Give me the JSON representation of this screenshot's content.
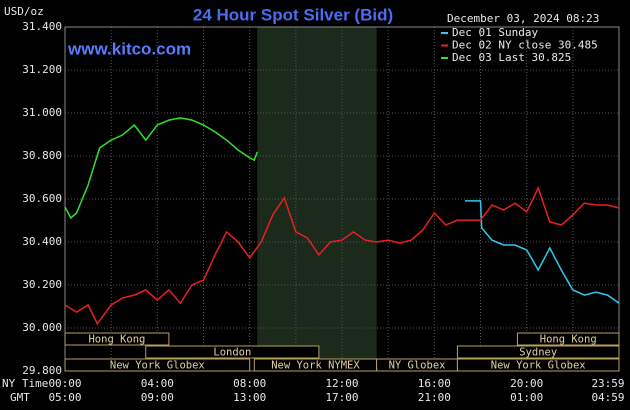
{
  "chart_data": {
    "type": "line",
    "title": "24 Hour Spot Silver (Bid)",
    "unit_label": "USD/oz",
    "website": "www.kitco.com",
    "timestamp": "December 03, 2024 08:23",
    "ylim": [
      29.8,
      31.4
    ],
    "yticks": [
      {
        "value": 29.8,
        "label": "29.800"
      },
      {
        "value": 30.0,
        "label": "30.000"
      },
      {
        "value": 30.2,
        "label": "30.200"
      },
      {
        "value": 30.4,
        "label": "30.400"
      },
      {
        "value": 30.6,
        "label": "30.600"
      },
      {
        "value": 30.8,
        "label": "30.800"
      },
      {
        "value": 31.0,
        "label": "31.000"
      },
      {
        "value": 31.2,
        "label": "31.200"
      },
      {
        "value": 31.4,
        "label": "31.400"
      }
    ],
    "xlim": [
      0,
      24
    ],
    "xticks": [
      {
        "value": 0,
        "label": "00:00"
      },
      {
        "value": 4,
        "label": "04:00"
      },
      {
        "value": 8,
        "label": "08:00"
      },
      {
        "value": 12,
        "label": "12:00"
      },
      {
        "value": 16,
        "label": "16:00"
      },
      {
        "value": 20,
        "label": "20:00"
      },
      {
        "value": 23.983,
        "label": "23:59"
      }
    ],
    "xticks_gmt": [
      {
        "value": 0,
        "label": "05:00"
      },
      {
        "value": 4,
        "label": "09:00"
      },
      {
        "value": 8,
        "label": "13:00"
      },
      {
        "value": 12,
        "label": "17:00"
      },
      {
        "value": 16,
        "label": "21:00"
      },
      {
        "value": 20,
        "label": "01:00"
      },
      {
        "value": 23.983,
        "label": "04:59"
      }
    ],
    "x_axis_label": "NY Time",
    "x_axis_label_gmt": "GMT",
    "xgrid": [
      2,
      4,
      6,
      8,
      10,
      12,
      14,
      16,
      18,
      20,
      22
    ],
    "grid": true,
    "shaded_range": [
      8.33,
      13.5
    ],
    "sessions": [
      [
        {
          "label": "Hong Kong",
          "start": 0,
          "end": 4.5
        },
        {
          "label": "Hong Kong",
          "start": 19.6,
          "end": 24
        }
      ],
      [
        {
          "label": "London",
          "start": 3.5,
          "end": 11
        },
        {
          "label": "Sydney",
          "start": 17,
          "end": 24
        }
      ],
      [
        {
          "label": "New York Globex",
          "start": 0,
          "end": 8
        },
        {
          "label": "New York NYMEX",
          "start": 8.2,
          "end": 13.5
        },
        {
          "label": "NY Globex",
          "start": 13.5,
          "end": 17
        },
        {
          "label": "New York Globex",
          "start": 17,
          "end": 24
        }
      ]
    ],
    "series": [
      {
        "name": "Dec 01 Sunday",
        "color": "#30c8f0",
        "x": [
          17.33,
          18.0,
          18.05,
          18.5,
          19.0,
          19.5,
          20.0,
          20.5,
          21.0,
          21.5,
          22.0,
          22.5,
          23.0,
          23.5,
          24.0
        ],
        "values": [
          30.591,
          30.591,
          30.465,
          30.409,
          30.386,
          30.386,
          30.363,
          30.27,
          30.372,
          30.27,
          30.177,
          30.153,
          30.167,
          30.153,
          30.116
        ]
      },
      {
        "name": "Dec 02 NY close 30.485",
        "color": "#e82020",
        "x": [
          0,
          0.5,
          1.0,
          1.4,
          2.0,
          2.5,
          3.0,
          3.5,
          4.0,
          4.5,
          5.0,
          5.5,
          6.0,
          6.5,
          7.0,
          7.5,
          8.0,
          8.5,
          9.0,
          9.5,
          10.0,
          10.5,
          11.0,
          11.5,
          12.0,
          12.5,
          13.0,
          13.5,
          14.0,
          14.5,
          15.0,
          15.5,
          16.0,
          16.5,
          17.0,
          17.5,
          18.0,
          18.5,
          19.0,
          19.5,
          20.0,
          20.5,
          21.0,
          21.5,
          22.0,
          22.5,
          23.0,
          23.5,
          24.0
        ],
        "values": [
          30.107,
          30.074,
          30.107,
          30.02,
          30.107,
          30.14,
          30.153,
          30.177,
          30.13,
          30.177,
          30.116,
          30.2,
          30.223,
          30.34,
          30.447,
          30.4,
          30.326,
          30.4,
          30.526,
          30.605,
          30.447,
          30.419,
          30.34,
          30.4,
          30.409,
          30.447,
          30.409,
          30.4,
          30.409,
          30.395,
          30.409,
          30.456,
          30.535,
          30.479,
          30.502,
          30.502,
          30.502,
          30.572,
          30.549,
          30.581,
          30.54,
          30.651,
          30.493,
          30.479,
          30.526,
          30.581,
          30.572,
          30.572,
          30.558
        ]
      },
      {
        "name": "Dec 03 Last 30.825",
        "color": "#30e030",
        "x": [
          0,
          0.25,
          0.5,
          1.0,
          1.5,
          2.0,
          2.5,
          3.0,
          3.5,
          4.0,
          4.5,
          5.0,
          5.5,
          6.0,
          6.5,
          7.0,
          7.5,
          8.0,
          8.2,
          8.33
        ],
        "values": [
          30.563,
          30.512,
          30.535,
          30.665,
          30.837,
          30.874,
          30.898,
          30.944,
          30.874,
          30.944,
          30.967,
          30.977,
          30.967,
          30.944,
          30.912,
          30.874,
          30.828,
          30.791,
          30.781,
          30.819
        ]
      }
    ]
  }
}
